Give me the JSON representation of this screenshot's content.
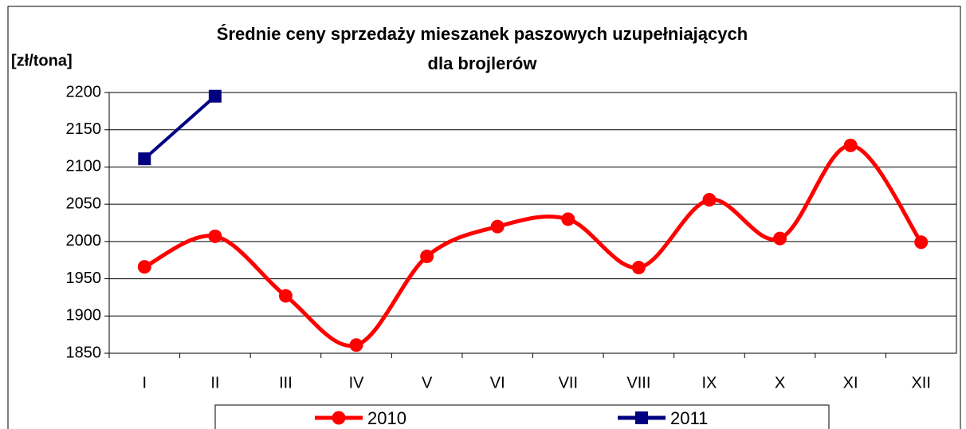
{
  "chart_data": {
    "type": "line",
    "title": [
      "Średnie ceny sprzedaży mieszanek paszowych uzupełniających",
      "dla brojlerów"
    ],
    "y_label": "[zł/tona]",
    "categories": [
      "I",
      "II",
      "III",
      "IV",
      "V",
      "VI",
      "VII",
      "VIII",
      "IX",
      "X",
      "XI",
      "XII"
    ],
    "series": [
      {
        "name": "2010",
        "color": "#ff0000",
        "marker": "circle",
        "smooth": true,
        "values": [
          1966,
          2007,
          1927,
          1861,
          1980,
          2020,
          2030,
          1965,
          2056,
          2004,
          2129,
          1999
        ]
      },
      {
        "name": "2011",
        "color": "#000080",
        "marker": "square",
        "smooth": false,
        "values": [
          2111,
          2195,
          null,
          null,
          null,
          null,
          null,
          null,
          null,
          null,
          null,
          null
        ]
      }
    ],
    "ylim": [
      1850,
      2200
    ],
    "yticks": [
      1850,
      1900,
      1950,
      2000,
      2050,
      2100,
      2150,
      2200
    ],
    "grid": true,
    "legend": "bottom"
  }
}
